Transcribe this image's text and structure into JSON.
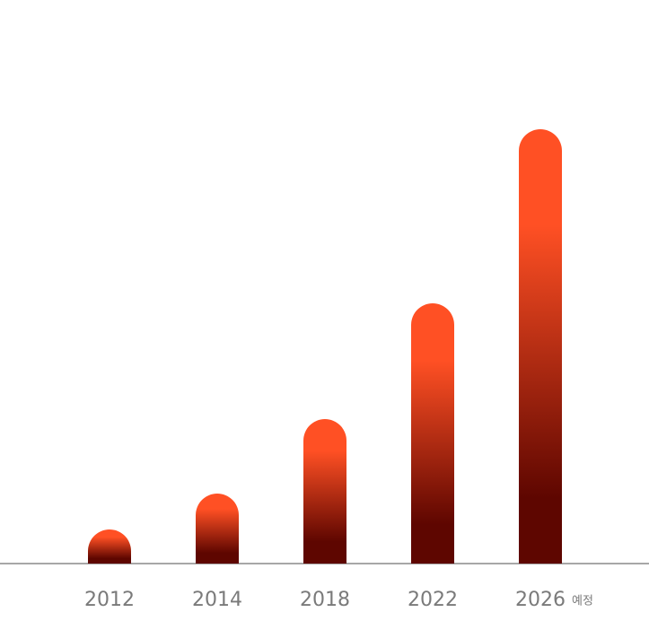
{
  "chart_data": {
    "type": "bar",
    "categories": [
      "2012",
      "2014",
      "2018",
      "2022",
      "2026"
    ],
    "annotation": "예정",
    "values": [
      38,
      78,
      161,
      290,
      484
    ],
    "ylim": [
      0,
      520
    ],
    "colors": [
      "#ff5024",
      "#5e0600"
    ]
  }
}
